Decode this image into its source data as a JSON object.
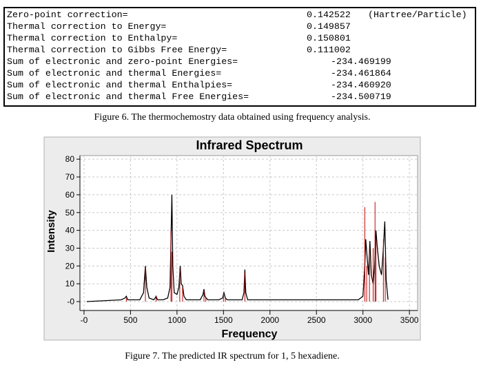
{
  "thermo": {
    "corrections": [
      {
        "label": "Zero-point correction=",
        "value": "0.142522",
        "unit": "(Hartree/Particle)"
      },
      {
        "label": "Thermal correction to Energy=",
        "value": "0.149857"
      },
      {
        "label": "Thermal correction to Enthalpy=",
        "value": "0.150801"
      },
      {
        "label": "Thermal correction to Gibbs Free Energy=",
        "value": "0.111002"
      }
    ],
    "sums": [
      {
        "label": "Sum of electronic and zero-point Energies=",
        "value": "-234.469199"
      },
      {
        "label": "Sum of electronic and thermal Energies=",
        "value": "-234.461864"
      },
      {
        "label": "Sum of electronic and thermal Enthalpies=",
        "value": "-234.460920"
      },
      {
        "label": "Sum of electronic and thermal Free Energies=",
        "value": "-234.500719"
      }
    ],
    "caption": "Figure 6. The thermochemostry data obtained using frequency analysis."
  },
  "chart_data": {
    "type": "line",
    "title": "Infrared Spectrum",
    "x_label": "Frequency",
    "y_label": "Intensity",
    "xlim": [
      -44,
      3588
    ],
    "ylim": [
      -5,
      82
    ],
    "xticks": [
      {
        "value": 0,
        "label": "-0"
      },
      500,
      1000,
      1500,
      2000,
      2500,
      3000,
      3500
    ],
    "yticks": [
      {
        "value": 0,
        "label": "-0"
      },
      10,
      20,
      30,
      40,
      50,
      60,
      70,
      80
    ],
    "grid": true,
    "series": [
      {
        "type": "line",
        "color": "#000000",
        "x": [
          30,
          400,
          440,
          455,
          470,
          600,
          640,
          660,
          675,
          700,
          750,
          765,
          775,
          790,
          850,
          900,
          925,
          945,
          955,
          970,
          1000,
          1020,
          1035,
          1045,
          1060,
          1075,
          1100,
          1250,
          1280,
          1290,
          1300,
          1330,
          1450,
          1490,
          1505,
          1520,
          1540,
          1700,
          1720,
          1730,
          1740,
          1760,
          2950,
          3000,
          3020,
          3030,
          3045,
          3060,
          3075,
          3090,
          3110,
          3125,
          3140,
          3155,
          3175,
          3200,
          3220,
          3235,
          3250,
          3270
        ],
        "values": [
          0,
          1,
          2,
          3,
          1,
          1,
          5,
          20,
          8,
          2,
          1,
          2,
          3,
          1,
          1,
          2,
          8,
          60,
          20,
          5,
          4,
          8,
          20,
          10,
          9,
          3,
          1,
          1,
          4,
          7,
          3,
          1,
          1,
          2,
          5,
          2,
          1,
          1,
          5,
          18,
          5,
          1,
          1,
          3,
          20,
          35,
          25,
          15,
          34,
          15,
          10,
          20,
          40,
          30,
          20,
          15,
          30,
          45,
          12,
          1
        ]
      },
      {
        "type": "stick",
        "color": "#c00000",
        "x": [
          455,
          660,
          775,
          935,
          945,
          1030,
          1060,
          1290,
          1310,
          1500,
          1520,
          1730,
          3020,
          3040,
          3070,
          3110,
          3130,
          3140,
          3220,
          3240
        ],
        "values": [
          2,
          19,
          3,
          40,
          28,
          19,
          8,
          6,
          2,
          5,
          2,
          16,
          53,
          20,
          30,
          30,
          56,
          35,
          35,
          25
        ]
      }
    ]
  },
  "caption": "Figure 7. The predicted IR spectrum for 1, 5 hexadiene."
}
